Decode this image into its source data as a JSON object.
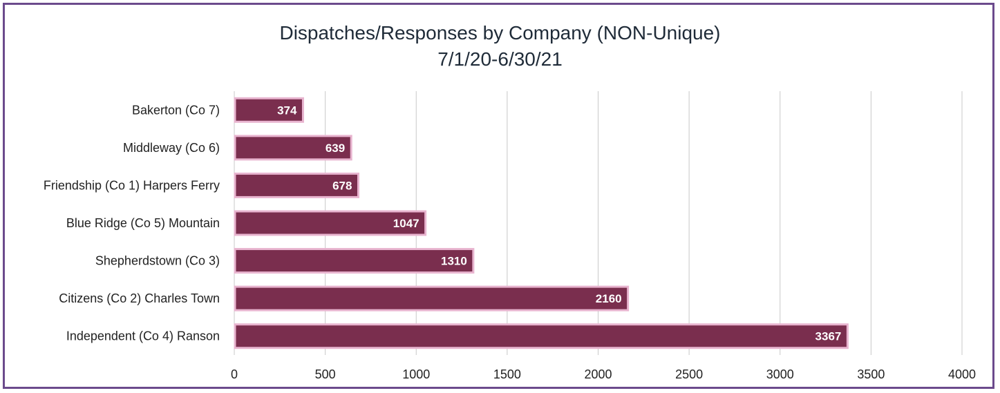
{
  "chart_data": {
    "type": "bar",
    "orientation": "horizontal",
    "title": "Dispatches/Responses by Company (NON-Unique)",
    "subtitle": "7/1/20-6/30/21",
    "categories": [
      "Bakerton (Co 7)",
      "Middleway (Co 6)",
      "Friendship (Co 1) Harpers Ferry",
      "Blue Ridge (Co 5) Mountain",
      "Shepherdstown (Co 3)",
      "Citizens (Co 2) Charles Town",
      "Independent (Co 4) Ranson"
    ],
    "values": [
      374,
      639,
      678,
      1047,
      1310,
      2160,
      3367
    ],
    "xlim": [
      0,
      4000
    ],
    "xticks": [
      0,
      500,
      1000,
      1500,
      2000,
      2500,
      3000,
      3500,
      4000
    ],
    "grid": true,
    "data_labels": true,
    "colors": {
      "bar_fill": "#7a2e4e",
      "bar_edge": "#e8b4cf",
      "grid": "#c8c8c8",
      "border": "#6b4a8c"
    }
  }
}
